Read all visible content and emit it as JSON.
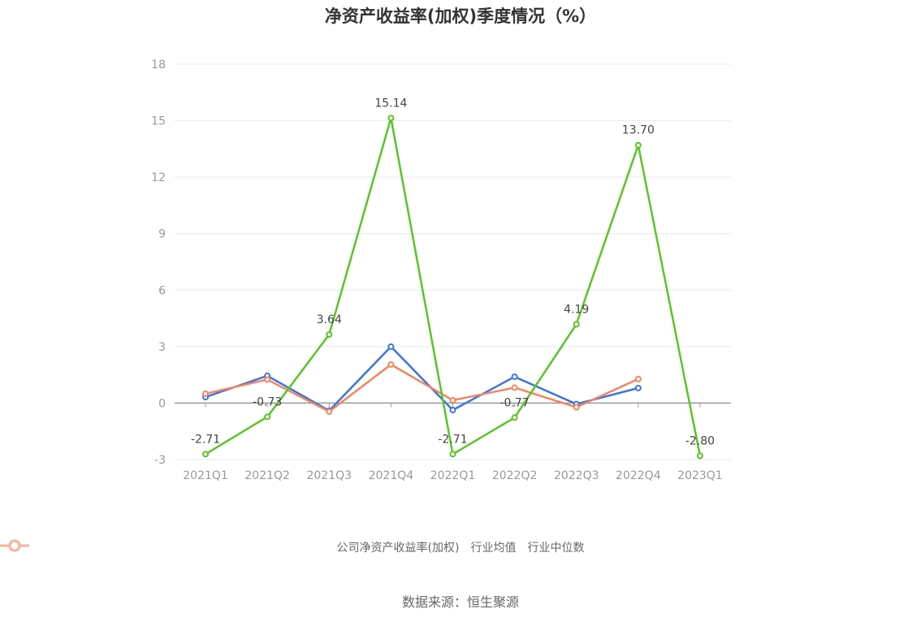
{
  "title": "净资产收益率(加权)季度情况（%）",
  "source": "数据来源：恒生聚源",
  "legend": [
    {
      "label": "公司净资产收益率(加权)",
      "color": "#5ac427"
    },
    {
      "label": "行业均值",
      "color": "#8cb4f2"
    },
    {
      "label": "行业中位数",
      "color": "#f8b49b"
    }
  ],
  "chart_data": {
    "type": "line",
    "title": "净资产收益率(加权)季度情况（%）",
    "xlabel": "",
    "ylabel": "",
    "ylim": [
      -3,
      18
    ],
    "yticks": [
      -3,
      0,
      3,
      6,
      9,
      12,
      15,
      18
    ],
    "grid": true,
    "legend_position": "bottom",
    "categories": [
      "2021Q1",
      "2021Q2",
      "2021Q3",
      "2021Q4",
      "2022Q1",
      "2022Q2",
      "2022Q3",
      "2022Q4",
      "2023Q1"
    ],
    "series": [
      {
        "name": "公司净资产收益率(加权)",
        "color": "#5ac427",
        "values": [
          -2.71,
          -0.73,
          3.64,
          15.14,
          -2.71,
          -0.77,
          4.19,
          13.7,
          -2.8
        ],
        "labels": [
          "-2.71",
          "-0.73",
          "3.64",
          "15.14",
          "-2.71",
          "-0.77",
          "4.19",
          "13.70",
          "-2.80"
        ]
      },
      {
        "name": "行业均值",
        "color": "#3b74e0",
        "values": [
          0.32,
          1.45,
          -0.4,
          3.0,
          -0.37,
          1.4,
          -0.05,
          0.8,
          null
        ]
      },
      {
        "name": "行业中位数",
        "color": "#f4845c",
        "values": [
          0.5,
          1.25,
          -0.45,
          2.05,
          0.15,
          0.82,
          -0.22,
          1.28,
          null
        ]
      }
    ]
  }
}
